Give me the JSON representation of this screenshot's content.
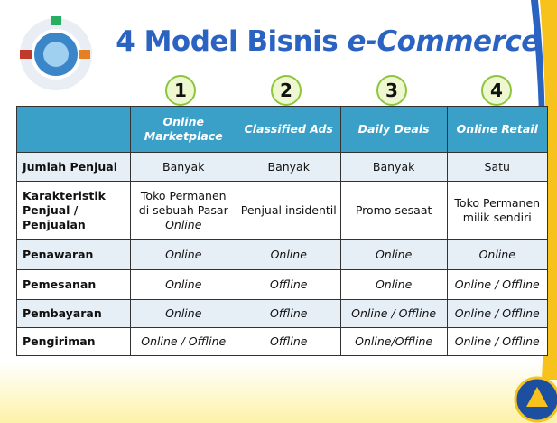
{
  "title": {
    "prefix": "4 Model Bisnis",
    "emphasis": "e-Commerce"
  },
  "numbers": [
    "1",
    "2",
    "3",
    "4"
  ],
  "table": {
    "header": [
      "Online Marketplace",
      "Classified Ads",
      "Daily Deals",
      "Online Retail"
    ],
    "rows": [
      [
        "Jumlah Penjual",
        "Banyak",
        "Banyak",
        "Banyak",
        "Satu"
      ],
      [
        "Karakteristik Penjual / Penjualan",
        [
          {
            "text": "Toko Permanen di sebuah Pasar"
          },
          {
            "text": "Online",
            "italic": true
          }
        ],
        "Penjual insidentil",
        "Promo sesaat",
        "Toko Permanen milik sendiri"
      ],
      [
        "Penawaran",
        {
          "text": "Online",
          "italic": true
        },
        {
          "text": "Online",
          "italic": true
        },
        {
          "text": "Online",
          "italic": true
        },
        {
          "text": "Online",
          "italic": true
        }
      ],
      [
        "Pemesanan",
        {
          "text": "Online",
          "italic": true
        },
        {
          "text": "Offline",
          "italic": true
        },
        {
          "text": "Online",
          "italic": true
        },
        {
          "text": "Online / Offline",
          "italic": true
        }
      ],
      [
        "Pembayaran",
        {
          "text": "Online",
          "italic": true
        },
        {
          "text": "Offline",
          "italic": true
        },
        {
          "text": "Online / Offline",
          "italic": true
        },
        {
          "text": "Online / Offline",
          "italic": true
        }
      ],
      [
        "Pengiriman",
        {
          "text": "Online / Offline",
          "italic": true
        },
        {
          "text": "Offline",
          "italic": true
        },
        {
          "text": "Online/Offline",
          "italic": true
        },
        {
          "text": "Online / Offline",
          "italic": true
        }
      ]
    ]
  }
}
